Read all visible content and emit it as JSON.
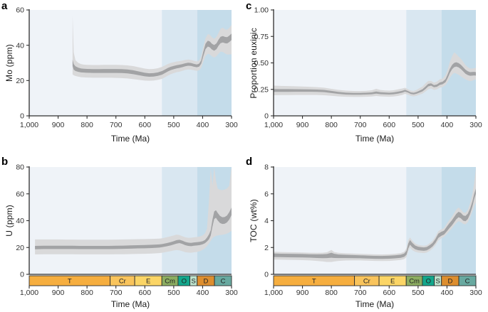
{
  "figure": {
    "background": "#ffffff",
    "description": "Four-panel geochemical time-series figure with uncertainty bands and geological timescale bars"
  },
  "styles": {
    "band_colors": [
      "#EFF3F8",
      "#D9E7F1",
      "#C4DCEA"
    ],
    "band_boundaries_ma": [
      1000,
      541,
      419,
      300
    ],
    "outer_band_color": "#D9D9DA",
    "inner_band_color": "#A2A3A5",
    "axis_color": "#2E2E2E",
    "tick_label_color": "#333333",
    "geo_label_color": "#222222"
  },
  "geo_timescale": {
    "segments": [
      {
        "label": "T",
        "start_ma": 1000,
        "end_ma": 720,
        "color": "#F6AE3F"
      },
      {
        "label": "Cr",
        "start_ma": 720,
        "end_ma": 635,
        "color": "#F9C45C"
      },
      {
        "label": "E",
        "start_ma": 635,
        "end_ma": 541,
        "color": "#FBD566"
      },
      {
        "label": "Cm",
        "start_ma": 541,
        "end_ma": 485,
        "color": "#8CAD61"
      },
      {
        "label": "O",
        "start_ma": 485,
        "end_ma": 444,
        "color": "#13A78C"
      },
      {
        "label": "S",
        "start_ma": 444,
        "end_ma": 419,
        "color": "#BCE2CC"
      },
      {
        "label": "D",
        "start_ma": 419,
        "end_ma": 359,
        "color": "#DD8E2F"
      },
      {
        "label": "C",
        "start_ma": 359,
        "end_ma": 300,
        "color": "#68A9A0"
      }
    ]
  },
  "chart_data": [
    {
      "panel_label": "a",
      "type": "area",
      "ylabel": "Mo (ppm)",
      "xlabel": "Time (Ma)",
      "xlim": [
        1000,
        300
      ],
      "ylim": [
        0,
        60
      ],
      "yticks": [
        0,
        20,
        40,
        60
      ],
      "ytick_labels": [
        "0",
        "20",
        "40",
        "60"
      ],
      "xticks": [
        1000,
        900,
        800,
        700,
        600,
        500,
        400,
        300
      ],
      "xtick_labels": [
        "1,000",
        "900",
        "800",
        "700",
        "600",
        "500",
        "400",
        "300"
      ],
      "has_geo_bar": false,
      "x_ma": [
        850,
        846,
        840,
        830,
        820,
        810,
        800,
        780,
        760,
        740,
        720,
        700,
        680,
        660,
        640,
        620,
        600,
        585,
        570,
        555,
        540,
        530,
        520,
        510,
        500,
        490,
        480,
        470,
        460,
        450,
        440,
        430,
        420,
        412,
        405,
        398,
        390,
        382,
        375,
        368,
        360,
        352,
        345,
        338,
        330,
        322,
        315,
        308,
        300
      ],
      "mean": [
        30,
        27.5,
        26.6,
        26.1,
        25.8,
        25.7,
        25.6,
        25.5,
        25.5,
        25.5,
        25.5,
        25.5,
        25.5,
        25.3,
        24.8,
        24.1,
        23.4,
        23.1,
        23.2,
        23.6,
        24.4,
        25.3,
        26.2,
        26.9,
        27.4,
        27.8,
        28.1,
        28.5,
        29.0,
        29.3,
        29.2,
        28.7,
        28.4,
        28.8,
        30.5,
        35.0,
        39.5,
        41.0,
        40.5,
        39.3,
        38.6,
        39.5,
        41.5,
        43.0,
        43.4,
        42.9,
        42.8,
        43.6,
        44.8
      ],
      "ci_upper": [
        57,
        36,
        31.5,
        30.0,
        29.3,
        29.0,
        28.9,
        28.8,
        28.8,
        28.9,
        28.9,
        28.9,
        28.8,
        28.6,
        28.2,
        27.5,
        26.8,
        26.5,
        26.6,
        27.0,
        27.8,
        28.6,
        29.4,
        30.0,
        30.4,
        30.8,
        31.0,
        31.3,
        31.7,
        31.9,
        31.7,
        31.2,
        30.8,
        31.4,
        33.5,
        39.0,
        44.0,
        46.3,
        46.0,
        44.6,
        43.6,
        44.8,
        47.0,
        49.3,
        50.0,
        49.0,
        48.8,
        49.8,
        51.5
      ],
      "ci_lower": [
        23.5,
        23.0,
        22.6,
        22.2,
        21.9,
        21.8,
        21.7,
        21.6,
        21.6,
        21.6,
        21.6,
        21.5,
        21.4,
        21.2,
        20.8,
        20.4,
        20.0,
        19.9,
        20.0,
        20.4,
        21.0,
        21.9,
        22.8,
        23.6,
        24.2,
        24.7,
        25.0,
        25.5,
        26.0,
        26.3,
        26.2,
        25.8,
        25.5,
        25.8,
        27.2,
        30.5,
        33.8,
        35.2,
        34.8,
        33.7,
        33.0,
        33.8,
        35.2,
        36.4,
        36.2,
        35.3,
        34.8,
        34.8,
        34.9
      ]
    },
    {
      "panel_label": "b",
      "type": "area",
      "ylabel": "U (ppm)",
      "xlabel": "Time (Ma)",
      "xlim": [
        1000,
        300
      ],
      "ylim": [
        0,
        80
      ],
      "yticks": [
        0,
        20,
        40,
        60,
        80
      ],
      "ytick_labels": [
        "0",
        "20",
        "40",
        "60",
        "80"
      ],
      "xticks": [
        1000,
        900,
        800,
        700,
        600,
        500,
        400,
        300
      ],
      "xtick_labels": [
        "1,000",
        "900",
        "800",
        "700",
        "600",
        "500",
        "400",
        "300"
      ],
      "has_geo_bar": true,
      "x_ma": [
        980,
        950,
        925,
        900,
        875,
        850,
        825,
        800,
        775,
        750,
        725,
        700,
        675,
        650,
        625,
        600,
        575,
        550,
        540,
        525,
        510,
        500,
        490,
        480,
        470,
        460,
        450,
        440,
        430,
        420,
        410,
        400,
        392,
        385,
        378,
        372,
        366,
        360,
        354,
        348,
        340,
        332,
        324,
        316,
        308,
        300
      ],
      "mean": [
        19.8,
        20.0,
        20.0,
        20.0,
        20.0,
        20.0,
        19.9,
        19.9,
        19.9,
        19.9,
        19.9,
        20.0,
        20.1,
        20.3,
        20.5,
        20.6,
        20.8,
        21.1,
        21.4,
        22.0,
        22.8,
        23.5,
        24.3,
        24.8,
        24.2,
        23.2,
        22.6,
        22.4,
        22.7,
        22.9,
        23.1,
        23.5,
        24.2,
        25.5,
        27.0,
        30.0,
        38.0,
        44.0,
        45.0,
        43.0,
        40.8,
        39.8,
        39.9,
        41.0,
        43.5,
        47.0
      ],
      "ci_upper": [
        26.0,
        26.0,
        26.0,
        26.0,
        25.9,
        25.9,
        25.8,
        25.8,
        25.8,
        25.8,
        25.8,
        25.9,
        26.0,
        26.1,
        26.2,
        26.3,
        26.4,
        26.6,
        26.9,
        27.6,
        28.4,
        29.0,
        29.6,
        29.3,
        28.4,
        27.6,
        27.2,
        27.3,
        27.6,
        27.8,
        28.2,
        29.0,
        30.5,
        34.0,
        55.0,
        79.0,
        66.0,
        80.0,
        70.0,
        64.0,
        63.0,
        62.8,
        63.2,
        64.0,
        66.0,
        80.0
      ],
      "ci_lower": [
        14.8,
        15.0,
        15.0,
        15.0,
        15.0,
        15.0,
        14.9,
        14.9,
        14.9,
        14.9,
        14.9,
        15.0,
        15.0,
        15.1,
        15.2,
        15.3,
        15.5,
        15.8,
        16.1,
        16.7,
        17.3,
        17.8,
        18.1,
        17.9,
        17.2,
        16.5,
        16.2,
        16.1,
        16.4,
        16.7,
        17.2,
        18.3,
        19.5,
        21.0,
        23.0,
        25.0,
        27.0,
        28.0,
        28.6,
        29.0,
        29.3,
        29.5,
        29.8,
        30.3,
        31.2,
        32.5
      ]
    },
    {
      "panel_label": "c",
      "type": "area",
      "ylabel": "Proportion euxinic",
      "xlabel": "Time (Ma)",
      "xlim": [
        1000,
        300
      ],
      "ylim": [
        0,
        1.0
      ],
      "yticks": [
        0,
        0.25,
        0.5,
        0.75,
        1.0
      ],
      "ytick_labels": [
        "0",
        "0.25",
        "0.50",
        "0.75",
        "1.00"
      ],
      "xticks": [
        1000,
        900,
        800,
        700,
        600,
        500,
        400,
        300
      ],
      "xtick_labels": [
        "1,000",
        "900",
        "800",
        "700",
        "600",
        "500",
        "400",
        "300"
      ],
      "has_geo_bar": false,
      "x_ma": [
        1000,
        975,
        950,
        925,
        900,
        875,
        850,
        825,
        800,
        775,
        750,
        725,
        700,
        680,
        660,
        645,
        630,
        615,
        600,
        585,
        570,
        555,
        545,
        535,
        525,
        515,
        505,
        495,
        485,
        475,
        465,
        455,
        445,
        435,
        425,
        415,
        405,
        398,
        390,
        382,
        375,
        368,
        360,
        352,
        344,
        336,
        328,
        320,
        312,
        306,
        300
      ],
      "mean": [
        0.24,
        0.24,
        0.24,
        0.24,
        0.24,
        0.24,
        0.239,
        0.236,
        0.227,
        0.217,
        0.211,
        0.209,
        0.209,
        0.21,
        0.213,
        0.219,
        0.214,
        0.212,
        0.21,
        0.213,
        0.219,
        0.228,
        0.238,
        0.228,
        0.214,
        0.21,
        0.217,
        0.228,
        0.24,
        0.262,
        0.29,
        0.297,
        0.281,
        0.285,
        0.303,
        0.31,
        0.33,
        0.37,
        0.425,
        0.462,
        0.48,
        0.486,
        0.478,
        0.462,
        0.44,
        0.418,
        0.405,
        0.398,
        0.4,
        0.4,
        0.395
      ],
      "ci_upper": [
        0.285,
        0.283,
        0.281,
        0.279,
        0.277,
        0.274,
        0.271,
        0.266,
        0.255,
        0.245,
        0.238,
        0.235,
        0.234,
        0.236,
        0.242,
        0.255,
        0.244,
        0.24,
        0.238,
        0.242,
        0.25,
        0.258,
        0.265,
        0.252,
        0.238,
        0.236,
        0.246,
        0.262,
        0.276,
        0.305,
        0.33,
        0.33,
        0.313,
        0.323,
        0.345,
        0.352,
        0.385,
        0.435,
        0.51,
        0.565,
        0.6,
        0.585,
        0.56,
        0.54,
        0.512,
        0.48,
        0.46,
        0.447,
        0.447,
        0.45,
        0.455
      ],
      "ci_lower": [
        0.195,
        0.196,
        0.196,
        0.197,
        0.197,
        0.197,
        0.197,
        0.195,
        0.19,
        0.184,
        0.18,
        0.179,
        0.179,
        0.18,
        0.183,
        0.188,
        0.184,
        0.182,
        0.18,
        0.183,
        0.188,
        0.197,
        0.208,
        0.2,
        0.188,
        0.184,
        0.19,
        0.2,
        0.21,
        0.228,
        0.25,
        0.258,
        0.245,
        0.25,
        0.266,
        0.272,
        0.29,
        0.318,
        0.36,
        0.39,
        0.405,
        0.4,
        0.388,
        0.373,
        0.358,
        0.345,
        0.335,
        0.328,
        0.332,
        0.34,
        0.345
      ]
    },
    {
      "panel_label": "d",
      "type": "area",
      "ylabel": "TOC (wt%)",
      "xlabel": "Time (Ma)",
      "xlim": [
        1000,
        300
      ],
      "ylim": [
        0,
        8
      ],
      "yticks": [
        0,
        2,
        4,
        6,
        8
      ],
      "ytick_labels": [
        "0",
        "2",
        "4",
        "6",
        "8"
      ],
      "xticks": [
        1000,
        900,
        800,
        700,
        600,
        500,
        400,
        300
      ],
      "xtick_labels": [
        "1,000",
        "900",
        "800",
        "700",
        "600",
        "500",
        "400",
        "300"
      ],
      "has_geo_bar": true,
      "x_ma": [
        1000,
        975,
        950,
        925,
        900,
        875,
        850,
        830,
        815,
        800,
        790,
        775,
        750,
        725,
        700,
        675,
        650,
        625,
        600,
        580,
        560,
        548,
        540,
        534,
        528,
        520,
        510,
        500,
        490,
        480,
        470,
        460,
        450,
        440,
        430,
        420,
        410,
        400,
        392,
        384,
        376,
        368,
        360,
        352,
        344,
        336,
        328,
        320,
        312,
        306,
        300
      ],
      "mean": [
        1.45,
        1.44,
        1.43,
        1.43,
        1.42,
        1.41,
        1.4,
        1.4,
        1.41,
        1.44,
        1.42,
        1.38,
        1.36,
        1.34,
        1.33,
        1.31,
        1.29,
        1.28,
        1.3,
        1.33,
        1.37,
        1.44,
        1.6,
        2.1,
        2.4,
        2.2,
        2.02,
        1.95,
        1.92,
        1.9,
        1.93,
        2.05,
        2.2,
        2.48,
        2.88,
        3.02,
        3.1,
        3.38,
        3.6,
        3.8,
        4.05,
        4.3,
        4.46,
        4.38,
        4.2,
        4.16,
        4.32,
        4.7,
        5.25,
        5.8,
        6.2
      ],
      "ci_upper": [
        1.68,
        1.66,
        1.65,
        1.64,
        1.63,
        1.61,
        1.6,
        1.61,
        1.65,
        1.82,
        1.66,
        1.6,
        1.57,
        1.55,
        1.53,
        1.51,
        1.49,
        1.48,
        1.5,
        1.53,
        1.58,
        1.68,
        1.95,
        2.55,
        2.75,
        2.52,
        2.3,
        2.2,
        2.16,
        2.13,
        2.17,
        2.32,
        2.5,
        2.82,
        3.22,
        3.35,
        3.45,
        3.8,
        4.05,
        4.25,
        4.55,
        4.82,
        4.98,
        4.85,
        4.62,
        4.58,
        4.8,
        5.3,
        6.0,
        6.8,
        7.9
      ],
      "ci_lower": [
        1.1,
        1.09,
        1.08,
        1.07,
        1.06,
        1.04,
        1.0,
        0.96,
        0.92,
        0.92,
        0.96,
        1.0,
        1.03,
        1.04,
        1.04,
        1.02,
        1.0,
        0.99,
        1.0,
        1.03,
        1.07,
        1.14,
        1.3,
        1.72,
        1.98,
        1.8,
        1.68,
        1.62,
        1.6,
        1.58,
        1.62,
        1.74,
        1.92,
        2.16,
        2.52,
        2.68,
        2.8,
        3.02,
        3.22,
        3.4,
        3.62,
        3.82,
        3.96,
        3.9,
        3.76,
        3.72,
        3.88,
        4.25,
        4.7,
        5.1,
        5.35
      ]
    }
  ]
}
